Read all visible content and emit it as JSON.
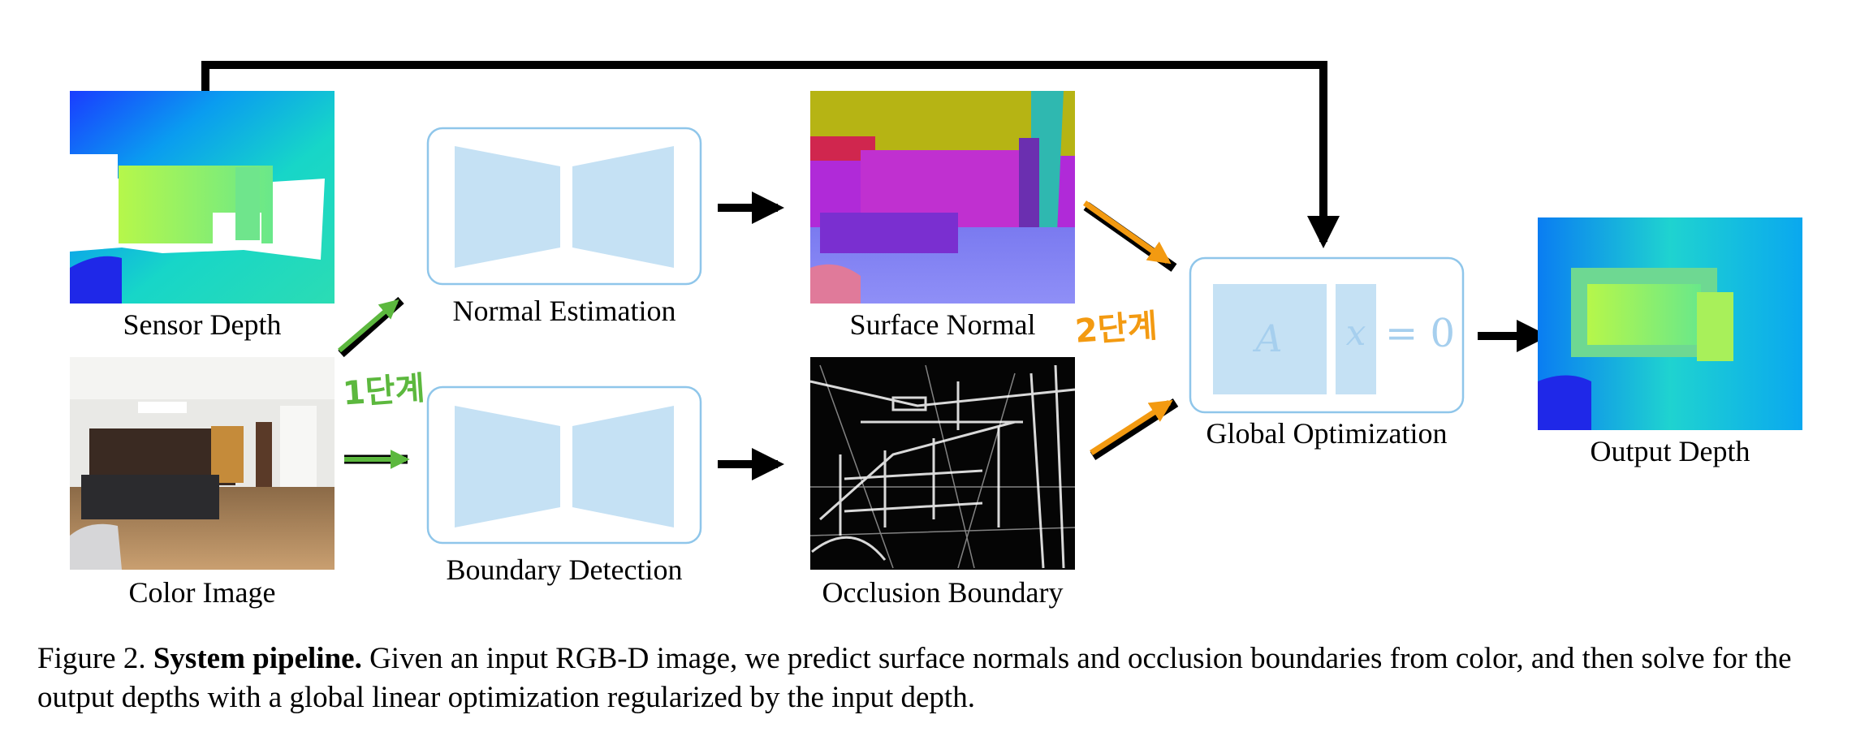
{
  "labels": {
    "sensor_depth": "Sensor Depth",
    "color_image": "Color Image",
    "normal_estimation": "Normal Estimation",
    "boundary_detection": "Boundary Detection",
    "surface_normal": "Surface Normal",
    "occlusion_boundary": "Occlusion Boundary",
    "global_optimization": "Global Optimization",
    "output_depth": "Output Depth"
  },
  "equation": {
    "matrix": "A",
    "vector": "x",
    "rhs": "= 0"
  },
  "annotations": {
    "step1": "1단계",
    "step2": "2단계"
  },
  "caption": {
    "prefix": "Figure 2.",
    "title": "System pipeline.",
    "text": "Given an input RGB-D image, we predict surface normals and occlusion boundaries from color, and then solve for the output depths with a global linear optimization regularized by the input depth."
  },
  "colors": {
    "network_fill": "#c5e1f4",
    "network_border": "#8fc6ea",
    "annotation_green": "#5cb83e",
    "annotation_orange": "#f39a11"
  }
}
